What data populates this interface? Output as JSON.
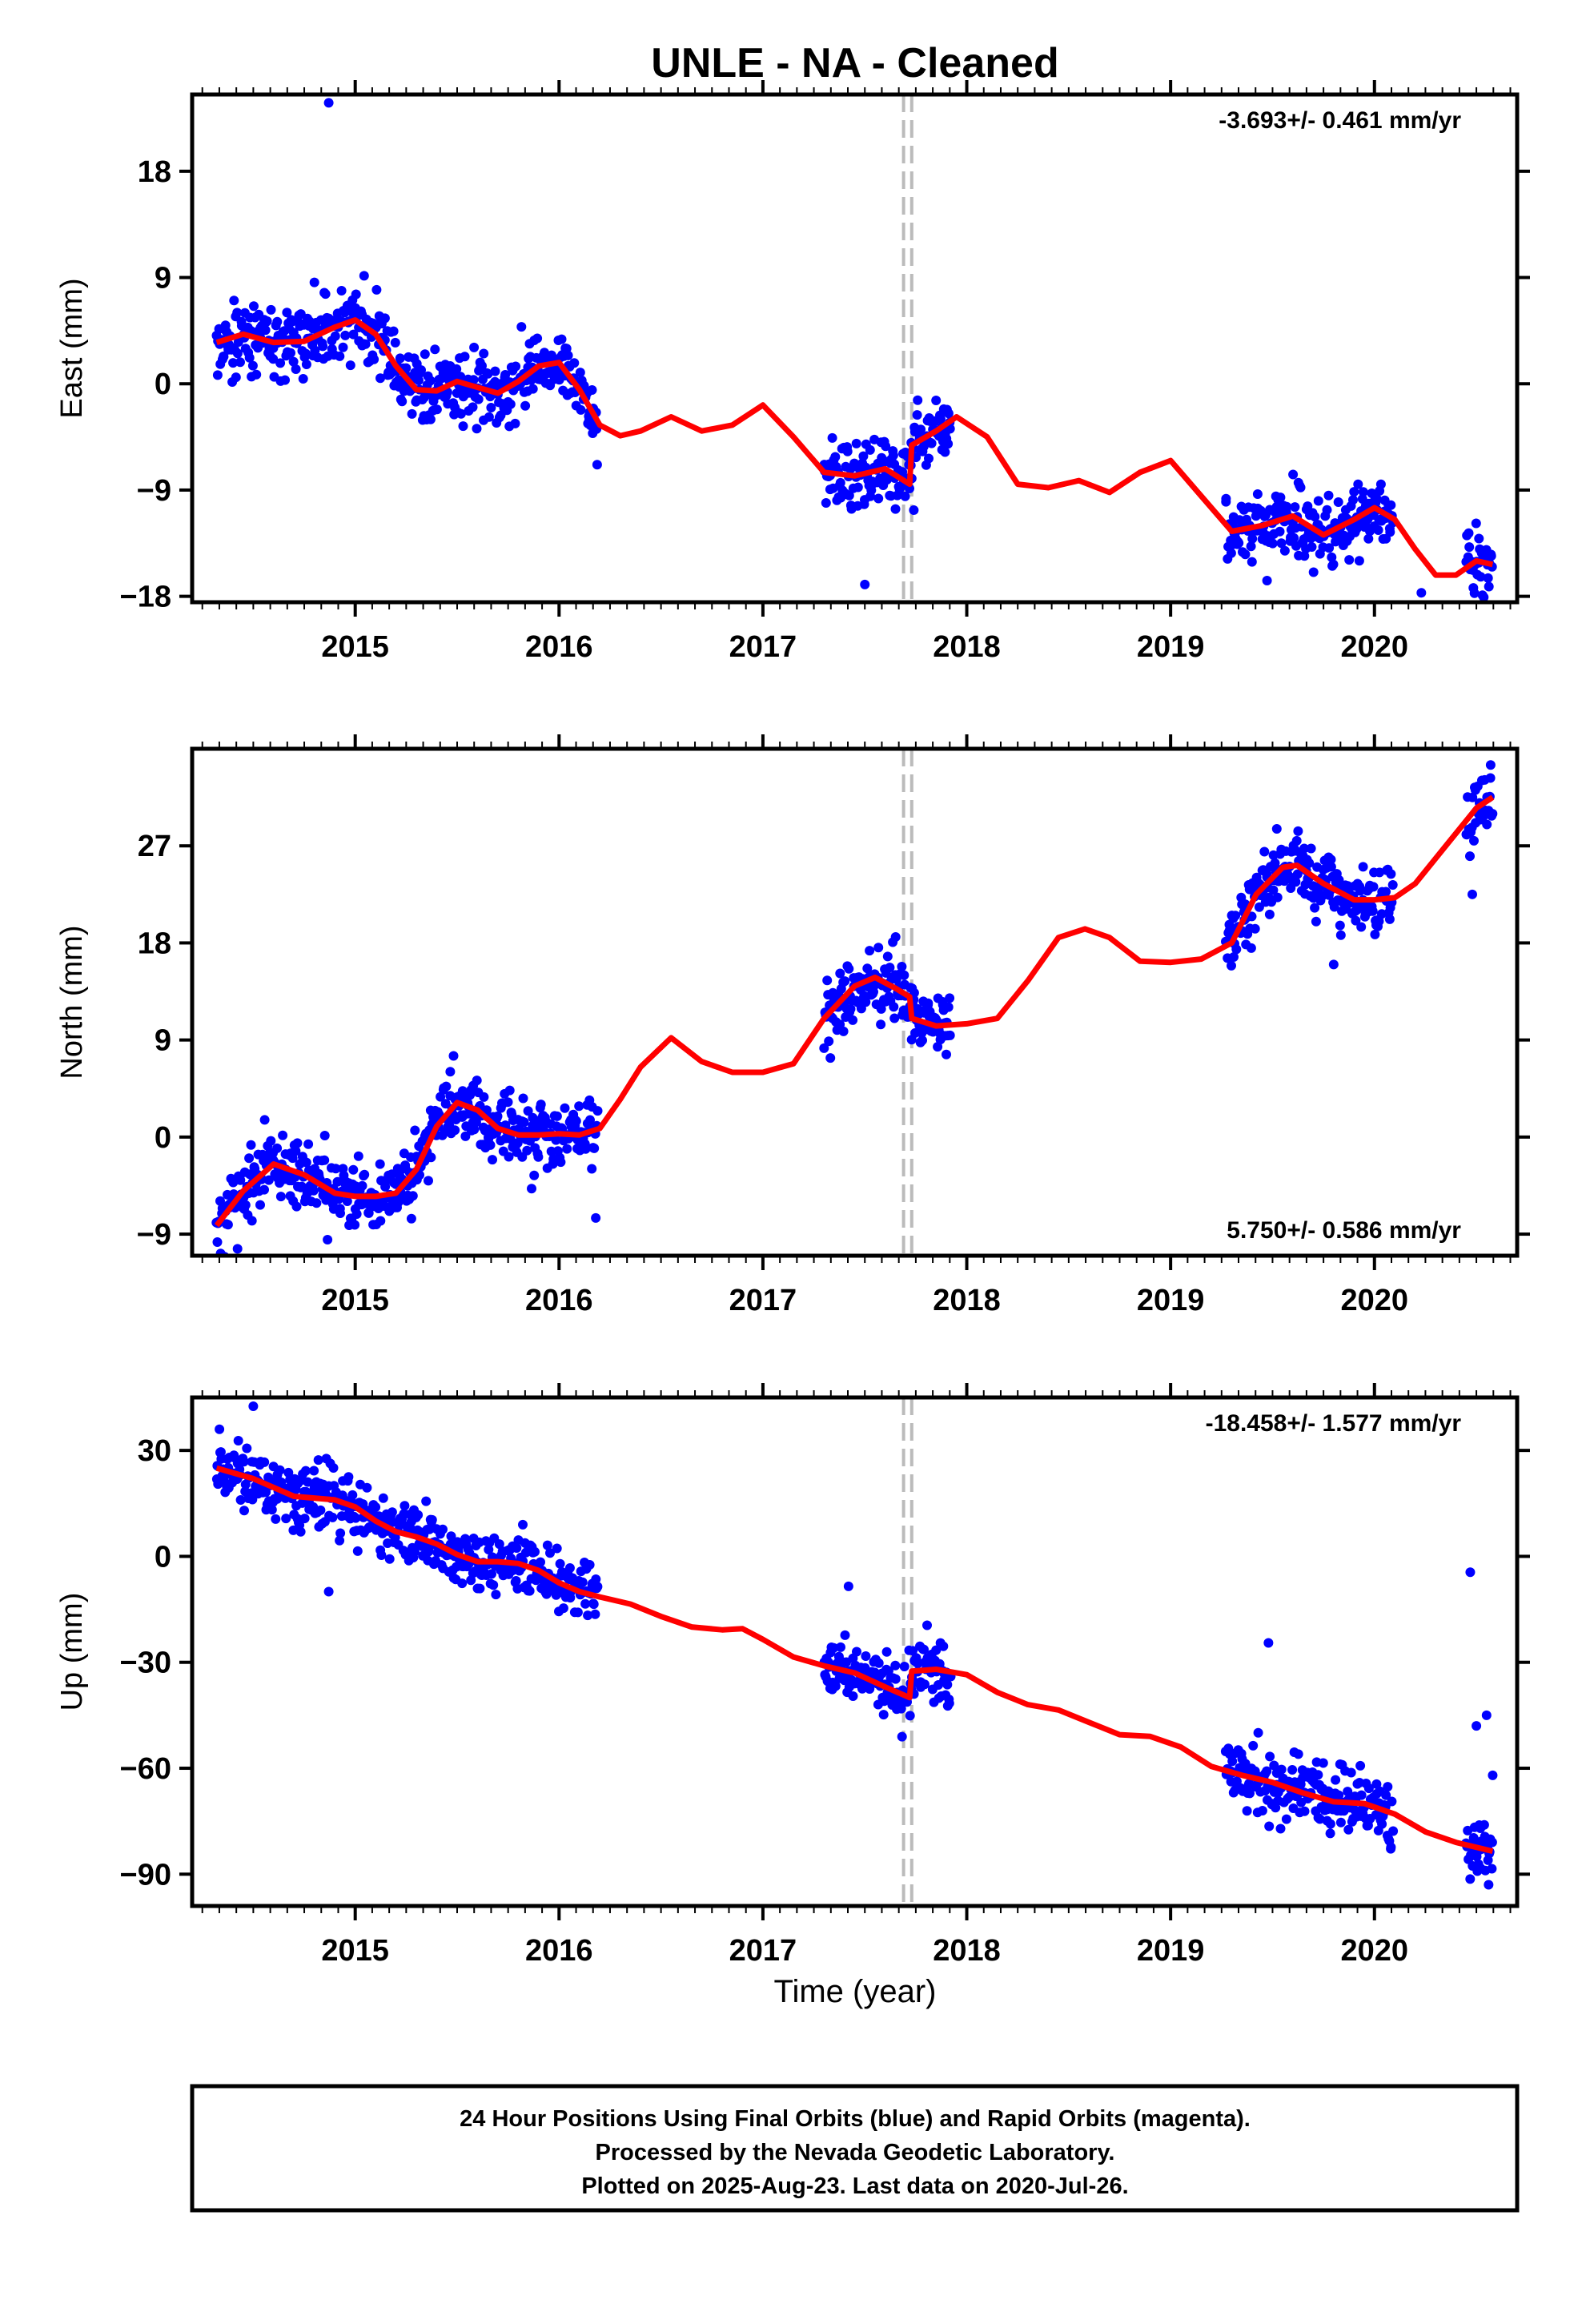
{
  "title": "UNLE  - NA - Cleaned",
  "xlabel": "Time (year)",
  "footer": {
    "line1": "24 Hour Positions Using Final Orbits (blue) and Rapid Orbits (magenta).",
    "line2": "Processed by the Nevada Geodetic Laboratory.",
    "line3": "Plotted on 2025-Aug-23. Last data on 2020-Jul-26."
  },
  "colors": {
    "data": "#0000ff",
    "model": "#ff0000",
    "break_line": "#bbbbbb"
  },
  "chart_data": [
    {
      "type": "scatter",
      "ylabel": "East (mm)",
      "rate_label": "-3.693+/- 0.461 mm/yr",
      "rate_position": "top-right",
      "xlim": [
        2014.2,
        2020.7
      ],
      "ylim": [
        -18.5,
        24.5
      ],
      "yticks": [
        -18,
        -9,
        0,
        9,
        18
      ],
      "xticks": [
        2015,
        2016,
        2017,
        2018,
        2019,
        2020
      ],
      "equipment_change": [
        2017.69,
        2017.73
      ],
      "data_segments": [
        [
          2014.32,
          2016.19
        ],
        [
          2017.3,
          2017.92
        ],
        [
          2019.27,
          2020.09
        ],
        [
          2020.45,
          2020.58
        ]
      ],
      "model": {
        "x": [
          2014.32,
          2014.45,
          2014.6,
          2014.75,
          2014.9,
          2015.0,
          2015.1,
          2015.2,
          2015.3,
          2015.4,
          2015.5,
          2015.6,
          2015.7,
          2015.8,
          2015.9,
          2016.0,
          2016.1,
          2016.2,
          2016.3,
          2016.4,
          2016.55,
          2016.7,
          2016.85,
          2017.0,
          2017.15,
          2017.3,
          2017.45,
          2017.6,
          2017.72,
          2017.73,
          2017.85,
          2017.95,
          2018.1,
          2018.25,
          2018.4,
          2018.55,
          2018.7,
          2018.85,
          2019.0,
          2019.15,
          2019.3,
          2019.45,
          2019.6,
          2019.75,
          2019.9,
          2020.0,
          2020.1,
          2020.2,
          2020.3,
          2020.4,
          2020.5,
          2020.58
        ],
        "y": [
          3.5,
          4.2,
          3.5,
          3.6,
          4.8,
          5.4,
          4.2,
          1.5,
          -0.5,
          -0.6,
          0.2,
          -0.3,
          -0.8,
          0.2,
          1.5,
          1.8,
          -0.5,
          -3.5,
          -4.4,
          -4.0,
          -2.8,
          -4.0,
          -3.5,
          -1.8,
          -4.5,
          -7.5,
          -7.8,
          -7.2,
          -8.5,
          -5.2,
          -4.0,
          -2.8,
          -4.5,
          -8.5,
          -8.8,
          -8.2,
          -9.2,
          -7.5,
          -6.5,
          -9.5,
          -12.5,
          -12.0,
          -11.2,
          -12.8,
          -11.5,
          -10.5,
          -11.5,
          -14.0,
          -16.2,
          -16.2,
          -15.0,
          -15.3
        ]
      },
      "scatter_sd": 1.5,
      "outliers": [
        {
          "x": 2014.87,
          "y": 23.8
        },
        {
          "x": 2017.5,
          "y": -17.0
        },
        {
          "x": 2020.23,
          "y": -17.7
        }
      ]
    },
    {
      "type": "scatter",
      "ylabel": "North (mm)",
      "rate_label": "5.750+/- 0.586 mm/yr",
      "rate_position": "bottom-right",
      "xlim": [
        2014.2,
        2020.7
      ],
      "ylim": [
        -11,
        36
      ],
      "yticks": [
        -9,
        0,
        9,
        18,
        27
      ],
      "xticks": [
        2015,
        2016,
        2017,
        2018,
        2019,
        2020
      ],
      "equipment_change": [
        2017.69,
        2017.73
      ],
      "data_segments": [
        [
          2014.32,
          2016.19
        ],
        [
          2017.3,
          2017.92
        ],
        [
          2019.27,
          2020.09
        ],
        [
          2020.45,
          2020.58
        ]
      ],
      "model": {
        "x": [
          2014.32,
          2014.45,
          2014.6,
          2014.75,
          2014.9,
          2015.0,
          2015.1,
          2015.2,
          2015.3,
          2015.4,
          2015.5,
          2015.6,
          2015.7,
          2015.8,
          2015.9,
          2016.0,
          2016.1,
          2016.2,
          2016.3,
          2016.4,
          2016.55,
          2016.7,
          2016.85,
          2017.0,
          2017.15,
          2017.3,
          2017.45,
          2017.55,
          2017.65,
          2017.72,
          2017.73,
          2017.85,
          2018.0,
          2018.15,
          2018.3,
          2018.45,
          2018.58,
          2018.7,
          2018.85,
          2019.0,
          2019.15,
          2019.3,
          2019.42,
          2019.55,
          2019.62,
          2019.75,
          2019.9,
          2020.0,
          2020.1,
          2020.2,
          2020.35,
          2020.5,
          2020.58
        ],
        "y": [
          -8.2,
          -5.0,
          -2.5,
          -3.5,
          -5.2,
          -5.5,
          -5.5,
          -5.2,
          -3.0,
          1.0,
          3.2,
          2.5,
          0.8,
          0.2,
          0.2,
          0.3,
          0.2,
          0.8,
          3.5,
          6.5,
          9.2,
          7.0,
          6.0,
          6.0,
          6.8,
          11.0,
          14.0,
          14.8,
          13.8,
          13.0,
          11.0,
          10.3,
          10.5,
          11.0,
          14.5,
          18.5,
          19.3,
          18.5,
          16.3,
          16.2,
          16.5,
          18.0,
          22.5,
          25.0,
          25.2,
          23.5,
          22.0,
          22.0,
          22.2,
          23.5,
          27.0,
          30.5,
          31.5
        ]
      },
      "scatter_sd": 1.6,
      "outliers": [
        {
          "x": 2016.18,
          "y": -7.5
        },
        {
          "x": 2019.8,
          "y": 16.0
        },
        {
          "x": 2020.48,
          "y": 22.5
        },
        {
          "x": 2020.57,
          "y": 34.5
        }
      ]
    },
    {
      "type": "scatter",
      "ylabel": "Up (mm)",
      "rate_label": "-18.458+/- 1.577 mm/yr",
      "rate_position": "top-right",
      "xlim": [
        2014.2,
        2020.7
      ],
      "ylim": [
        -99,
        45
      ],
      "yticks": [
        -90,
        -60,
        -30,
        0,
        30
      ],
      "xticks": [
        2015,
        2016,
        2017,
        2018,
        2019,
        2020
      ],
      "equipment_change": [
        2017.69,
        2017.73
      ],
      "data_segments": [
        [
          2014.32,
          2016.19
        ],
        [
          2017.3,
          2017.92
        ],
        [
          2019.27,
          2020.09
        ],
        [
          2020.45,
          2020.58
        ]
      ],
      "model": {
        "x": [
          2014.32,
          2014.5,
          2014.7,
          2014.9,
          2015.0,
          2015.1,
          2015.2,
          2015.3,
          2015.4,
          2015.5,
          2015.6,
          2015.7,
          2015.8,
          2015.9,
          2016.0,
          2016.1,
          2016.2,
          2016.35,
          2016.5,
          2016.65,
          2016.8,
          2016.9,
          2017.0,
          2017.15,
          2017.3,
          2017.45,
          2017.6,
          2017.72,
          2017.73,
          2017.85,
          2018.0,
          2018.15,
          2018.3,
          2018.45,
          2018.6,
          2018.75,
          2018.9,
          2019.05,
          2019.2,
          2019.35,
          2019.5,
          2019.65,
          2019.8,
          2019.95,
          2020.1,
          2020.25,
          2020.4,
          2020.58
        ],
        "y": [
          25.0,
          22.0,
          17.0,
          16.0,
          14.0,
          10.0,
          7.0,
          5.5,
          3.5,
          0.5,
          -1.5,
          -1.5,
          -2.0,
          -4.0,
          -7.5,
          -10.0,
          -11.5,
          -13.5,
          -17.0,
          -20.0,
          -20.8,
          -20.5,
          -23.5,
          -28.5,
          -31.0,
          -33.0,
          -37.0,
          -40.0,
          -32.5,
          -32.0,
          -33.5,
          -38.5,
          -42.0,
          -43.5,
          -47.0,
          -50.5,
          -51.0,
          -54.0,
          -59.5,
          -62.0,
          -64.0,
          -67.0,
          -69.5,
          -70.0,
          -73.0,
          -78.0,
          -81.0,
          -83.5
        ]
      },
      "scatter_sd": 4.3,
      "outliers": [
        {
          "x": 2014.5,
          "y": 42.5
        },
        {
          "x": 2014.87,
          "y": -10.0
        },
        {
          "x": 2017.42,
          "y": -8.5
        },
        {
          "x": 2019.48,
          "y": -24.5
        },
        {
          "x": 2020.47,
          "y": -4.5
        },
        {
          "x": 2020.5,
          "y": -48.0
        },
        {
          "x": 2020.52,
          "y": -77.0
        },
        {
          "x": 2020.55,
          "y": -45.0
        },
        {
          "x": 2020.56,
          "y": -93.0
        },
        {
          "x": 2020.58,
          "y": -62.0
        }
      ]
    }
  ]
}
